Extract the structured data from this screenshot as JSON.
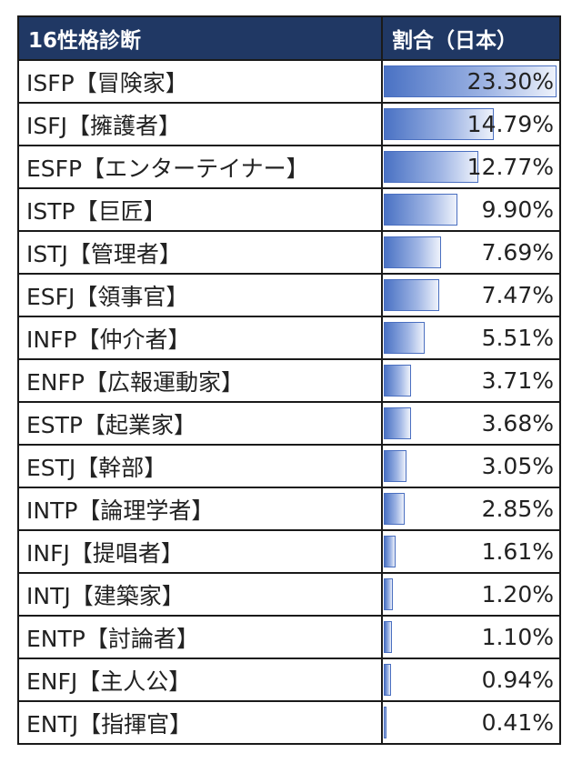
{
  "chart_data": {
    "type": "table",
    "columns": [
      "16性格診断",
      "割合（日本）"
    ],
    "xlim": [
      0,
      23.3
    ],
    "rows": [
      {
        "type": "ISFP【冒険家】",
        "pct": 23.3,
        "label": "23.30%"
      },
      {
        "type": "ISFJ【擁護者】",
        "pct": 14.79,
        "label": "14.79%"
      },
      {
        "type": "ESFP【エンターテイナー】",
        "pct": 12.77,
        "label": "12.77%"
      },
      {
        "type": "ISTP【巨匠】",
        "pct": 9.9,
        "label": "9.90%"
      },
      {
        "type": "ISTJ【管理者】",
        "pct": 7.69,
        "label": "7.69%"
      },
      {
        "type": "ESFJ【領事官】",
        "pct": 7.47,
        "label": "7.47%"
      },
      {
        "type": "INFP【仲介者】",
        "pct": 5.51,
        "label": "5.51%"
      },
      {
        "type": "ENFP【広報運動家】",
        "pct": 3.71,
        "label": "3.71%"
      },
      {
        "type": "ESTP【起業家】",
        "pct": 3.68,
        "label": "3.68%"
      },
      {
        "type": "ESTJ【幹部】",
        "pct": 3.05,
        "label": "3.05%"
      },
      {
        "type": "INTP【論理学者】",
        "pct": 2.85,
        "label": "2.85%"
      },
      {
        "type": "INFJ【提唱者】",
        "pct": 1.61,
        "label": "1.61%"
      },
      {
        "type": "INTJ【建築家】",
        "pct": 1.2,
        "label": "1.20%"
      },
      {
        "type": "ENTP【討論者】",
        "pct": 1.1,
        "label": "1.10%"
      },
      {
        "type": "ENFJ【主人公】",
        "pct": 0.94,
        "label": "0.94%"
      },
      {
        "type": "ENTJ【指揮官】",
        "pct": 0.41,
        "label": "0.41%"
      }
    ]
  },
  "colors": {
    "header_bg": "#203864",
    "header_text": "#ffffff",
    "bar_dark": "#4a72c4",
    "bar_light": "#eef2fb",
    "border": "#1a1a1a"
  }
}
